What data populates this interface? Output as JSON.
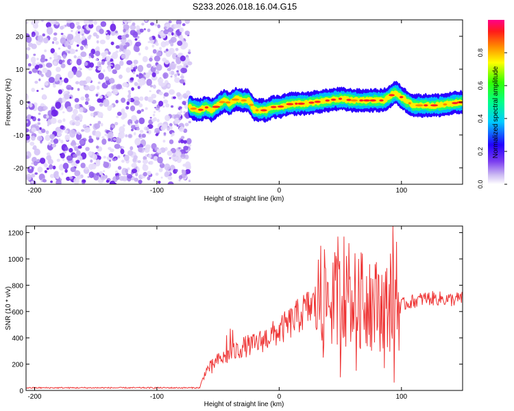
{
  "figure_title": "S233.2026.018.16.04.G15",
  "chart_data": [
    {
      "type": "heatmap",
      "name": "spectrogram",
      "xlabel": "Height of straight line (km)",
      "ylabel": "Frequency (Hz)",
      "xlim": [
        -207,
        150
      ],
      "ylim": [
        -25,
        25
      ],
      "xticks": [
        -200,
        -100,
        0,
        100
      ],
      "yticks": [
        -20,
        -10,
        0,
        10,
        20
      ],
      "noise_region_x": [
        -207,
        -73
      ],
      "signal_track": {
        "x": [
          -73,
          -70,
          -65,
          -60,
          -55,
          -50,
          -45,
          -40,
          -35,
          -30,
          -25,
          -20,
          -15,
          -10,
          -5,
          0,
          10,
          20,
          30,
          40,
          50,
          60,
          70,
          80,
          85,
          90,
          95,
          100,
          105,
          110,
          115,
          120,
          130,
          140,
          150
        ],
        "freq": [
          -1.5,
          -2,
          -2.5,
          -1.5,
          -2.5,
          -1,
          0.5,
          -0.5,
          1,
          0.5,
          0.5,
          -2.5,
          -2.5,
          -2.5,
          -1.5,
          -1.5,
          -0.5,
          -0.5,
          0,
          0.5,
          1,
          0.5,
          0.5,
          0.5,
          0.5,
          1.5,
          3,
          1.5,
          0,
          -1,
          -1,
          -1,
          -1,
          -0.5,
          0
        ]
      },
      "colorbar": {
        "label": "Normalized spectral amplitude",
        "ticks": [
          0.0,
          0.2,
          0.4,
          0.6,
          0.8
        ],
        "tick_labels": [
          "0.0",
          "0.2",
          "0.4",
          "0.6",
          "0.8"
        ],
        "range": [
          0,
          1
        ]
      }
    },
    {
      "type": "line",
      "name": "snr",
      "xlabel": "Height of straight line (km)",
      "ylabel": "SNR (10 * v/v)",
      "xlim": [
        -207,
        150
      ],
      "ylim": [
        0,
        1250
      ],
      "xticks": [
        -200,
        -100,
        0,
        100
      ],
      "yticks": [
        0,
        200,
        400,
        600,
        800,
        1000,
        1200
      ],
      "color": "#ee3333",
      "baseline_segment": {
        "x": [
          -207,
          -65
        ],
        "level": 20,
        "noise": 10
      },
      "trend": {
        "x": [
          -65,
          -60,
          -50,
          -40,
          -30,
          -20,
          -10,
          0,
          10,
          20,
          28,
          32,
          40,
          50,
          60,
          70,
          80,
          90,
          100,
          110,
          120,
          130,
          140,
          150
        ],
        "y": [
          20,
          150,
          230,
          270,
          330,
          350,
          400,
          450,
          520,
          600,
          650,
          680,
          700,
          680,
          690,
          680,
          650,
          640,
          650,
          680,
          700,
          700,
          690,
          700
        ]
      },
      "spikes": [
        {
          "x": 34,
          "y": 1100
        },
        {
          "x": 36,
          "y": 250
        },
        {
          "x": 48,
          "y": 1170
        },
        {
          "x": 50,
          "y": 100
        },
        {
          "x": 53,
          "y": 1170
        },
        {
          "x": 57,
          "y": 1120
        },
        {
          "x": 63,
          "y": 150
        },
        {
          "x": 65,
          "y": 1000
        },
        {
          "x": 68,
          "y": 1040
        },
        {
          "x": 74,
          "y": 960
        },
        {
          "x": 81,
          "y": 880
        },
        {
          "x": 86,
          "y": 170
        },
        {
          "x": 91,
          "y": 1040
        },
        {
          "x": 93,
          "y": 1250
        },
        {
          "x": 94,
          "y": 60
        },
        {
          "x": 96,
          "y": 1130
        },
        {
          "x": -43,
          "y": 420
        },
        {
          "x": -40,
          "y": 470
        },
        {
          "x": -38,
          "y": 460
        },
        {
          "x": -55,
          "y": 130
        }
      ]
    }
  ]
}
